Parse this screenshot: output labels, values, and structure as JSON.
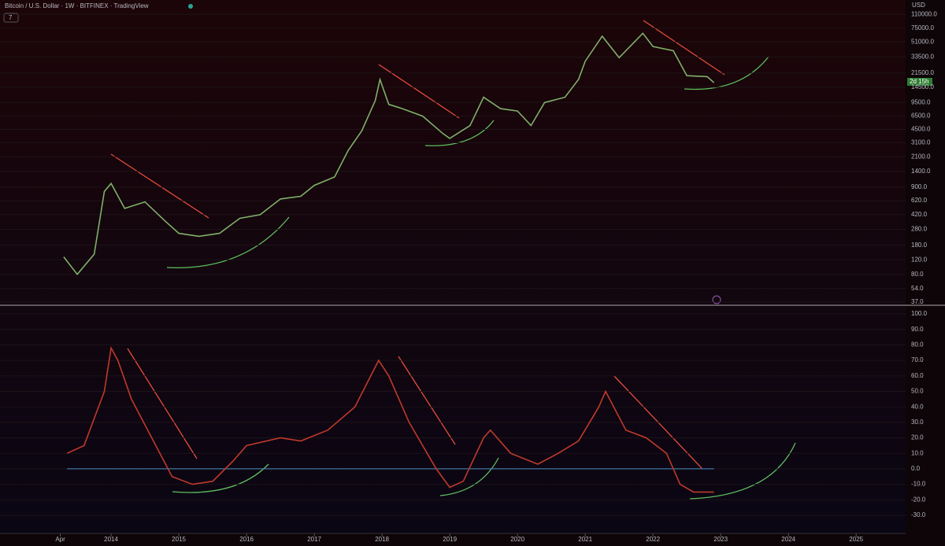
{
  "chart_data": [
    {
      "type": "line",
      "title": "Bitcoin / U.S. Dollar · 1W · BITFINEX · TradingView",
      "interval_box": "7",
      "unit": "USD",
      "countdown": "2d 15h",
      "log_scale": true,
      "color": "#7fb069",
      "x": [
        2013.3,
        2013.5,
        2013.75,
        2013.9,
        2014.0,
        2014.2,
        2014.5,
        2014.8,
        2015.0,
        2015.3,
        2015.6,
        2015.9,
        2016.2,
        2016.5,
        2016.8,
        2017.0,
        2017.3,
        2017.5,
        2017.7,
        2017.9,
        2017.97,
        2018.1,
        2018.3,
        2018.6,
        2018.9,
        2019.0,
        2019.3,
        2019.5,
        2019.75,
        2020.0,
        2020.2,
        2020.4,
        2020.7,
        2020.9,
        2021.0,
        2021.25,
        2021.5,
        2021.85,
        2022.0,
        2022.3,
        2022.5,
        2022.8,
        2022.9
      ],
      "values": [
        130,
        80,
        140,
        800,
        1000,
        500,
        600,
        350,
        250,
        230,
        250,
        380,
        420,
        650,
        700,
        950,
        1200,
        2500,
        4300,
        10000,
        18000,
        9000,
        8000,
        6500,
        4000,
        3500,
        5000,
        11000,
        8000,
        7500,
        5000,
        9500,
        11000,
        18000,
        30000,
        60000,
        33000,
        65000,
        45000,
        40000,
        20000,
        19500,
        16500
      ],
      "xlim": [
        2012.36,
        2025.73
      ],
      "ylim": [
        33.9,
        164000
      ],
      "yticks": [
        {
          "value": 110000,
          "label": "110000.0"
        },
        {
          "value": 75000,
          "label": "75000.0"
        },
        {
          "value": 51000,
          "label": "51000.0"
        },
        {
          "value": 33500,
          "label": "33500.0"
        },
        {
          "value": 21500,
          "label": "21500.0"
        },
        {
          "value": 14500,
          "label": "14500.0"
        },
        {
          "value": 9500,
          "label": "9500.0"
        },
        {
          "value": 6500,
          "label": "6500.0"
        },
        {
          "value": 4500,
          "label": "4500.0"
        },
        {
          "value": 3100,
          "label": "3100.0"
        },
        {
          "value": 2100,
          "label": "2100.0"
        },
        {
          "value": 1400,
          "label": "1400.0"
        },
        {
          "value": 900,
          "label": "900.0"
        },
        {
          "value": 620,
          "label": "620.0"
        },
        {
          "value": 420,
          "label": "420.0"
        },
        {
          "value": 280,
          "label": "280.0"
        },
        {
          "value": 180,
          "label": "180.0"
        },
        {
          "value": 120,
          "label": "120.0"
        },
        {
          "value": 80,
          "label": "80.0"
        },
        {
          "value": 54,
          "label": "54.0"
        },
        {
          "value": 37,
          "label": "37.0"
        }
      ]
    },
    {
      "type": "line",
      "color": "#c0392b",
      "x": [
        2013.35,
        2013.6,
        2013.9,
        2014.0,
        2014.1,
        2014.3,
        2014.6,
        2014.9,
        2015.2,
        2015.5,
        2015.8,
        2016.0,
        2016.5,
        2016.8,
        2017.2,
        2017.6,
        2017.95,
        2018.1,
        2018.4,
        2018.8,
        2019.0,
        2019.2,
        2019.5,
        2019.6,
        2019.9,
        2020.3,
        2020.6,
        2020.9,
        2021.2,
        2021.3,
        2021.6,
        2021.9,
        2022.2,
        2022.4,
        2022.6,
        2022.9
      ],
      "values": [
        10,
        15,
        50,
        78,
        70,
        45,
        20,
        -5,
        -10,
        -8,
        5,
        15,
        20,
        18,
        25,
        40,
        70,
        60,
        30,
        0,
        -12,
        -8,
        20,
        25,
        10,
        3,
        10,
        18,
        40,
        50,
        25,
        20,
        10,
        -10,
        -15,
        -15
      ],
      "xlim": [
        2012.36,
        2025.73
      ],
      "ylim": [
        -41.7,
        105.6
      ],
      "yticks": [
        {
          "value": 100,
          "label": "100.0"
        },
        {
          "value": 90,
          "label": "90.0"
        },
        {
          "value": 80,
          "label": "80.0"
        },
        {
          "value": 70,
          "label": "70.0"
        },
        {
          "value": 60,
          "label": "60.0"
        },
        {
          "value": 50,
          "label": "50.0"
        },
        {
          "value": 40,
          "label": "40.0"
        },
        {
          "value": 30,
          "label": "30.0"
        },
        {
          "value": 20,
          "label": "20.0"
        },
        {
          "value": 10,
          "label": "10.0"
        },
        {
          "value": 0,
          "label": "0.0"
        },
        {
          "value": -10,
          "label": "-10.0"
        },
        {
          "value": -20,
          "label": "-20.0"
        },
        {
          "value": -30,
          "label": "-30.0"
        }
      ],
      "xticks": [
        {
          "value": 2013.25,
          "label": "Apr"
        },
        2014,
        2015,
        2016,
        2017,
        2018,
        2019,
        2020,
        2021,
        2022,
        2023,
        2024,
        2025
      ]
    }
  ]
}
